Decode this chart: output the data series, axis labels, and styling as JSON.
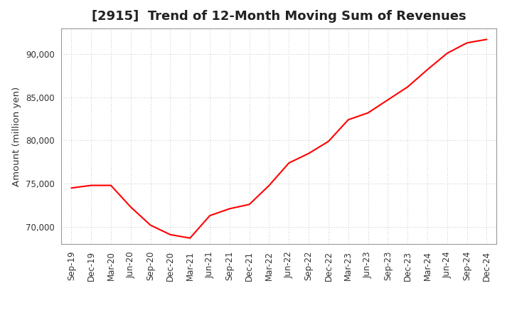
{
  "title": "[2915]  Trend of 12-Month Moving Sum of Revenues",
  "ylabel": "Amount (million yen)",
  "line_color": "#ff0000",
  "background_color": "#ffffff",
  "plot_bg_color": "#ffffff",
  "grid_color": "#aaaaaa",
  "x_labels": [
    "Sep-19",
    "Dec-19",
    "Mar-20",
    "Jun-20",
    "Sep-20",
    "Dec-20",
    "Mar-21",
    "Jun-21",
    "Sep-21",
    "Dec-21",
    "Mar-22",
    "Jun-22",
    "Sep-22",
    "Dec-22",
    "Mar-23",
    "Jun-23",
    "Sep-23",
    "Dec-23",
    "Mar-24",
    "Jun-24",
    "Sep-24",
    "Dec-24"
  ],
  "y_values": [
    74500,
    74800,
    74800,
    72300,
    70200,
    69100,
    68700,
    71300,
    72100,
    72600,
    74800,
    77400,
    78500,
    79900,
    82400,
    83200,
    84700,
    86200,
    88200,
    90100,
    91300,
    91700
  ],
  "ylim": [
    68000,
    93000
  ],
  "yticks": [
    70000,
    75000,
    80000,
    85000,
    90000
  ],
  "title_fontsize": 13,
  "axis_fontsize": 9.5,
  "tick_fontsize": 8.5
}
